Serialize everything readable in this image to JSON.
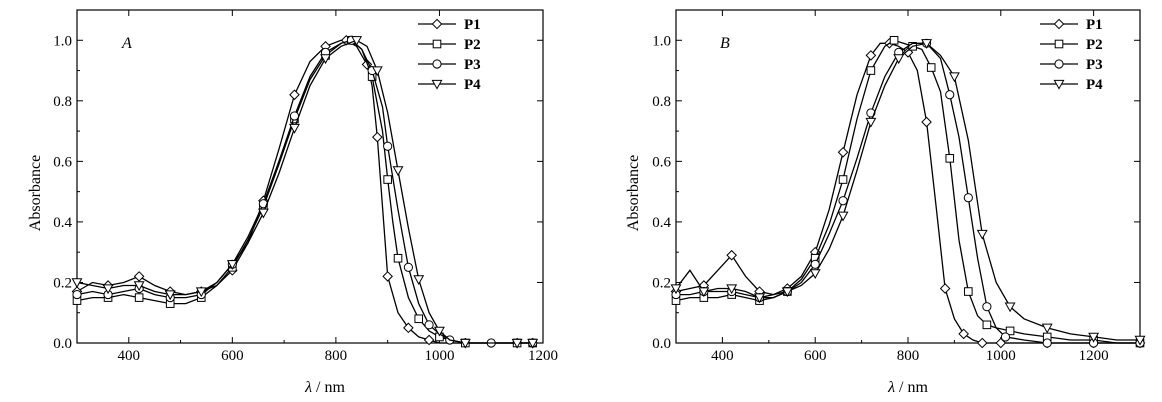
{
  "chart_data": [
    {
      "type": "line",
      "panel_label": "A",
      "xlabel_symbol": "λ",
      "xlabel_unit": " / nm",
      "ylabel": "Absorbance",
      "xlim": [
        300,
        1200
      ],
      "ylim": [
        0.0,
        1.1
      ],
      "xticks": [
        400,
        600,
        800,
        1000,
        1200
      ],
      "yticks": [
        0.0,
        0.2,
        0.4,
        0.6,
        0.8,
        1.0
      ],
      "legend_position": "top-right",
      "grid": false,
      "series": [
        {
          "name": "P1",
          "marker": "diamond",
          "x": [
            300,
            330,
            360,
            390,
            420,
            450,
            480,
            510,
            540,
            570,
            600,
            630,
            660,
            690,
            720,
            750,
            780,
            810,
            820,
            840,
            860,
            870,
            880,
            890,
            900,
            920,
            940,
            960,
            980,
            1000,
            1050,
            1100,
            1150,
            1180
          ],
          "y": [
            0.17,
            0.2,
            0.19,
            0.2,
            0.22,
            0.19,
            0.17,
            0.16,
            0.17,
            0.19,
            0.24,
            0.33,
            0.47,
            0.64,
            0.82,
            0.93,
            0.98,
            1.0,
            1.0,
            0.98,
            0.92,
            0.85,
            0.68,
            0.45,
            0.22,
            0.1,
            0.05,
            0.02,
            0.01,
            0.0,
            0.0,
            0.0,
            0.0,
            0.0
          ]
        },
        {
          "name": "P2",
          "marker": "square",
          "x": [
            300,
            330,
            360,
            390,
            420,
            450,
            480,
            510,
            540,
            570,
            600,
            630,
            660,
            690,
            720,
            750,
            780,
            810,
            830,
            850,
            870,
            890,
            900,
            910,
            920,
            940,
            960,
            980,
            1000,
            1020,
            1050,
            1100,
            1150,
            1180
          ],
          "y": [
            0.14,
            0.15,
            0.15,
            0.16,
            0.15,
            0.14,
            0.13,
            0.13,
            0.15,
            0.19,
            0.25,
            0.34,
            0.45,
            0.59,
            0.74,
            0.87,
            0.95,
            0.99,
            1.0,
            0.97,
            0.88,
            0.7,
            0.54,
            0.4,
            0.28,
            0.15,
            0.08,
            0.04,
            0.02,
            0.01,
            0.0,
            0.0,
            0.0,
            0.0
          ]
        },
        {
          "name": "P3",
          "marker": "circle",
          "x": [
            300,
            330,
            360,
            390,
            420,
            450,
            480,
            510,
            540,
            570,
            600,
            630,
            660,
            690,
            720,
            750,
            780,
            810,
            830,
            850,
            870,
            890,
            900,
            920,
            940,
            960,
            980,
            1000,
            1020,
            1050,
            1100,
            1150,
            1180
          ],
          "y": [
            0.16,
            0.17,
            0.16,
            0.17,
            0.18,
            0.16,
            0.15,
            0.15,
            0.16,
            0.2,
            0.26,
            0.35,
            0.46,
            0.6,
            0.75,
            0.88,
            0.96,
            0.99,
            1.0,
            0.97,
            0.9,
            0.78,
            0.65,
            0.44,
            0.25,
            0.13,
            0.06,
            0.03,
            0.01,
            0.0,
            0.0,
            0.0,
            0.0
          ]
        },
        {
          "name": "P4",
          "marker": "triangle-down",
          "x": [
            300,
            330,
            360,
            390,
            420,
            450,
            480,
            510,
            540,
            570,
            600,
            630,
            660,
            690,
            720,
            750,
            780,
            810,
            840,
            860,
            880,
            900,
            920,
            940,
            960,
            980,
            1000,
            1020,
            1050,
            1100,
            1150,
            1180
          ],
          "y": [
            0.2,
            0.19,
            0.18,
            0.19,
            0.19,
            0.17,
            0.16,
            0.16,
            0.17,
            0.2,
            0.26,
            0.33,
            0.43,
            0.56,
            0.71,
            0.85,
            0.94,
            0.98,
            1.0,
            0.98,
            0.9,
            0.76,
            0.57,
            0.38,
            0.21,
            0.1,
            0.04,
            0.01,
            0.0,
            0.0,
            0.0,
            0.0
          ]
        }
      ]
    },
    {
      "type": "line",
      "panel_label": "B",
      "xlabel_symbol": "λ",
      "xlabel_unit": " / nm",
      "ylabel": "Absorbance",
      "xlim": [
        300,
        1300
      ],
      "ylim": [
        0.0,
        1.1
      ],
      "xticks": [
        400,
        600,
        800,
        1000,
        1200
      ],
      "yticks": [
        0.0,
        0.2,
        0.4,
        0.6,
        0.8,
        1.0
      ],
      "legend_position": "top-right",
      "grid": false,
      "series": [
        {
          "name": "P1",
          "marker": "diamond",
          "x": [
            300,
            330,
            360,
            390,
            420,
            450,
            480,
            510,
            540,
            570,
            600,
            630,
            660,
            690,
            720,
            740,
            760,
            780,
            800,
            820,
            840,
            860,
            880,
            900,
            920,
            940,
            960,
            980,
            1000,
            1050,
            1100,
            1150,
            1200,
            1250,
            1300
          ],
          "y": [
            0.17,
            0.18,
            0.19,
            0.24,
            0.29,
            0.22,
            0.17,
            0.16,
            0.18,
            0.22,
            0.3,
            0.44,
            0.63,
            0.82,
            0.95,
            0.99,
            0.99,
            0.98,
            0.96,
            0.9,
            0.73,
            0.46,
            0.18,
            0.08,
            0.03,
            0.01,
            0.0,
            0.0,
            0.0,
            0.0,
            0.0,
            0.0,
            0.0,
            0.0,
            0.0
          ]
        },
        {
          "name": "P2",
          "marker": "square",
          "x": [
            300,
            330,
            360,
            390,
            420,
            450,
            480,
            510,
            540,
            570,
            600,
            630,
            660,
            690,
            720,
            750,
            770,
            790,
            810,
            830,
            850,
            870,
            890,
            910,
            930,
            950,
            970,
            990,
            1020,
            1050,
            1100,
            1150,
            1200,
            1250,
            1300
          ],
          "y": [
            0.14,
            0.15,
            0.15,
            0.15,
            0.16,
            0.15,
            0.14,
            0.15,
            0.17,
            0.21,
            0.28,
            0.39,
            0.54,
            0.74,
            0.9,
            0.98,
            1.0,
            0.99,
            0.98,
            0.97,
            0.91,
            0.83,
            0.61,
            0.34,
            0.17,
            0.09,
            0.06,
            0.05,
            0.04,
            0.03,
            0.02,
            0.01,
            0.01,
            0.0,
            0.0
          ]
        },
        {
          "name": "P3",
          "marker": "circle",
          "x": [
            300,
            330,
            360,
            390,
            420,
            450,
            480,
            510,
            540,
            570,
            600,
            630,
            660,
            690,
            720,
            750,
            780,
            810,
            840,
            870,
            890,
            910,
            930,
            950,
            970,
            990,
            1010,
            1050,
            1100,
            1150,
            1200,
            1250,
            1300
          ],
          "y": [
            0.16,
            0.16,
            0.17,
            0.17,
            0.17,
            0.16,
            0.15,
            0.15,
            0.17,
            0.2,
            0.26,
            0.36,
            0.47,
            0.61,
            0.76,
            0.88,
            0.96,
            0.99,
            0.99,
            0.94,
            0.82,
            0.68,
            0.48,
            0.28,
            0.12,
            0.05,
            0.02,
            0.01,
            0.0,
            0.0,
            0.0,
            0.0,
            0.0
          ]
        },
        {
          "name": "P4",
          "marker": "triangle-down",
          "x": [
            300,
            330,
            360,
            390,
            420,
            450,
            480,
            510,
            540,
            570,
            600,
            630,
            660,
            690,
            720,
            750,
            780,
            810,
            840,
            870,
            900,
            930,
            960,
            990,
            1020,
            1050,
            1100,
            1150,
            1200,
            1250,
            1300
          ],
          "y": [
            0.18,
            0.24,
            0.17,
            0.18,
            0.18,
            0.17,
            0.15,
            0.16,
            0.17,
            0.19,
            0.23,
            0.31,
            0.42,
            0.57,
            0.73,
            0.85,
            0.94,
            0.98,
            0.99,
            0.95,
            0.88,
            0.67,
            0.36,
            0.2,
            0.12,
            0.08,
            0.05,
            0.03,
            0.02,
            0.01,
            0.01
          ]
        }
      ]
    }
  ]
}
